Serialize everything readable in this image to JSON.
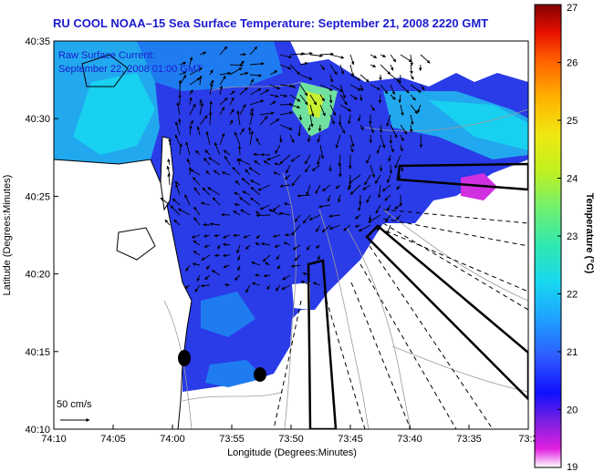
{
  "title": "RU COOL  NOAA–15  Sea Surface Temperature:  September 21, 2008 2220 GMT",
  "current_note": {
    "line1": "Raw Surface Current:",
    "line2": "September 22, 2008 01:00 GMT"
  },
  "axes": {
    "xlabel": "Longitude (Degrees:Minutes)",
    "ylabel": "Latitude (Degrees:Minutes)",
    "x_ticks": [
      "74:10",
      "74:05",
      "74:00",
      "73:55",
      "73:50",
      "73:45",
      "73:40",
      "73:35",
      "73:3"
    ],
    "y_ticks": [
      "40:35",
      "40:30",
      "40:25",
      "40:20",
      "40:15",
      "40:10"
    ]
  },
  "colorbar": {
    "label": "Temperature (°C)",
    "min": 19,
    "max": 27,
    "ticks": [
      "27",
      "26",
      "25",
      "24",
      "23",
      "22",
      "21",
      "20",
      "19"
    ]
  },
  "scale": {
    "label": "50 cm/s"
  },
  "colors": {
    "title": "#1b1bd0",
    "sst_dominant": "#2a3be8",
    "coast": "#000000",
    "bathymetry": "#9a9a9a"
  }
}
